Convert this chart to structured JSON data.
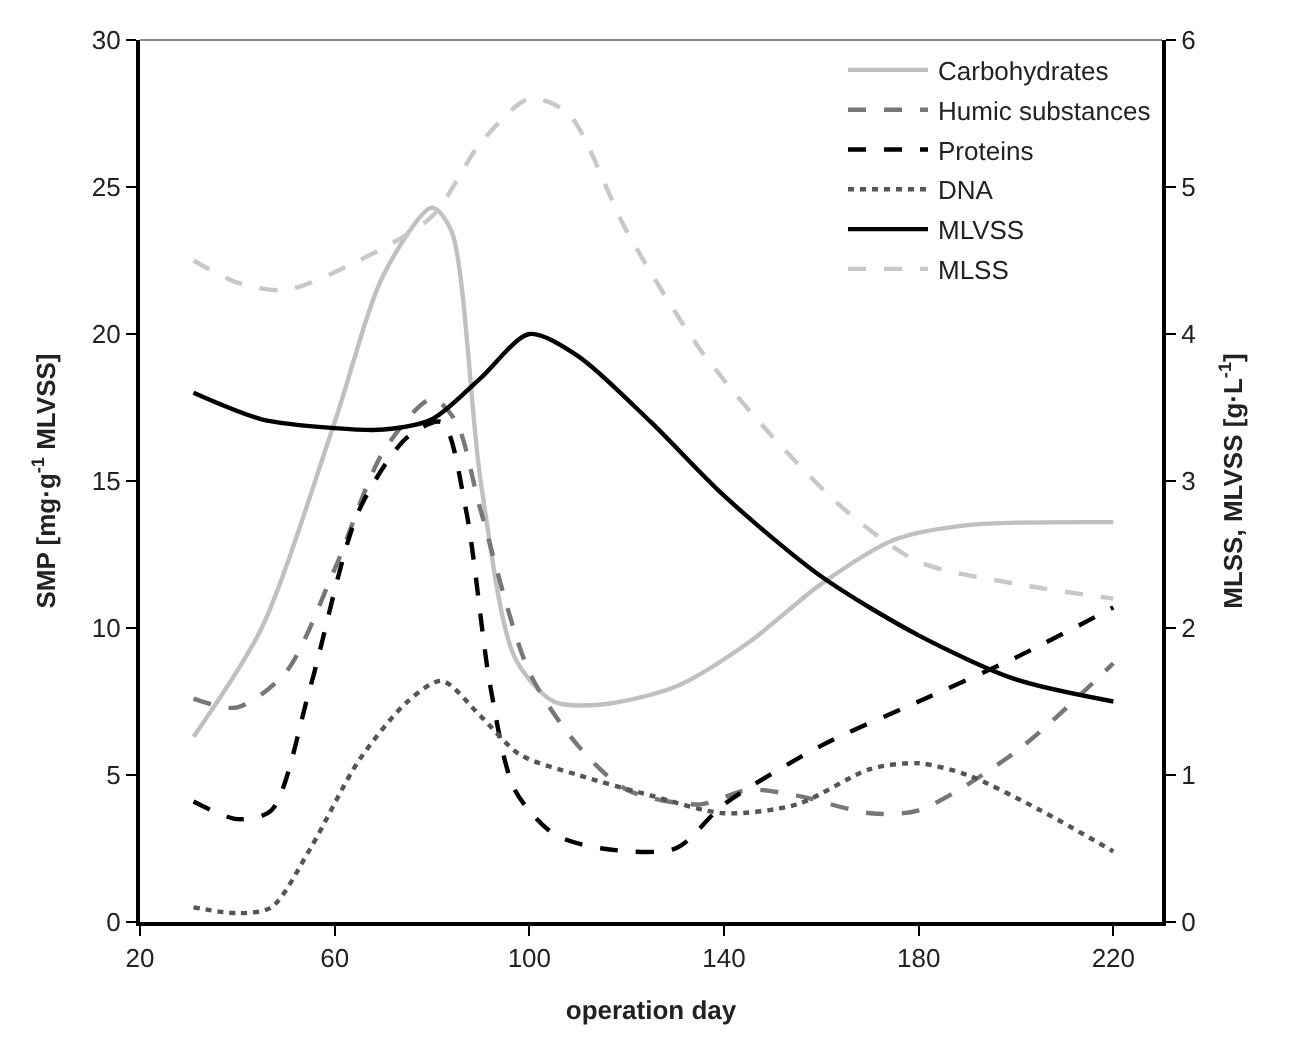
{
  "chart_data": {
    "type": "line",
    "xlabel": "operation day",
    "ylabel": "SMP [mg·g$^{-1}$ MLVSS]",
    "y2label": "MLSS, MLVSS [g·L$^{-1}$]",
    "xlim": [
      20,
      230
    ],
    "xticks": [
      20,
      60,
      100,
      140,
      180,
      220
    ],
    "ylim": [
      0,
      30
    ],
    "yticks": [
      0,
      5,
      10,
      15,
      20,
      25,
      30
    ],
    "y2lim": [
      0,
      6
    ],
    "y2ticks": [
      0,
      1,
      2,
      3,
      4,
      5,
      6
    ],
    "legend": "top right",
    "marker": "none",
    "series": [
      {
        "name": "Carbohydrates",
        "color": "#c0c0c0",
        "line_style": "solid",
        "x": [
          31,
          45,
          60,
          70,
          80,
          84,
          90,
          97,
          105,
          115,
          130,
          145,
          160,
          175,
          190,
          220
        ],
        "values": [
          6.3,
          10,
          17,
          22,
          24.3,
          23.5,
          15,
          9,
          7.5,
          7.4,
          8,
          9.5,
          11.5,
          13,
          13.5,
          13.6
        ]
      },
      {
        "name": "Humic substances",
        "color": "#777777",
        "line_style": "dashed",
        "x": [
          31,
          40,
          50,
          60,
          70,
          80,
          85,
          90,
          100,
          110,
          120,
          135,
          145,
          155,
          170,
          180,
          200,
          220
        ],
        "values": [
          7.6,
          7.3,
          8.5,
          12,
          16,
          17.8,
          17,
          14,
          8.5,
          6,
          4.5,
          4,
          4.5,
          4.3,
          3.7,
          3.8,
          5.8,
          8.8
        ]
      },
      {
        "name": "Proteins",
        "color": "#000000",
        "line_style": "dashed",
        "x": [
          31,
          40,
          47,
          55,
          65,
          75,
          82,
          87,
          92,
          97,
          105,
          115,
          130,
          140,
          160,
          180,
          200,
          220
        ],
        "values": [
          4.1,
          3.5,
          3.8,
          8,
          14,
          16.5,
          17,
          14,
          8,
          4.5,
          3,
          2.5,
          2.5,
          4,
          6,
          7.5,
          9,
          10.7
        ]
      },
      {
        "name": "DNA",
        "color": "#555555",
        "line_style": "dotted",
        "x": [
          31,
          40,
          47,
          55,
          65,
          75,
          82,
          90,
          98,
          110,
          125,
          140,
          155,
          170,
          180,
          190,
          205,
          220
        ],
        "values": [
          0.5,
          0.3,
          0.5,
          2.5,
          5.5,
          7.5,
          8.2,
          7,
          5.7,
          5,
          4.3,
          3.7,
          4,
          5.2,
          5.4,
          5,
          3.8,
          2.4
        ]
      },
      {
        "name": "MLVSS",
        "color": "#000000",
        "line_style": "solid",
        "axis": "y2",
        "x": [
          31,
          45,
          60,
          70,
          80,
          90,
          100,
          110,
          125,
          140,
          160,
          180,
          200,
          220
        ],
        "values": [
          3.6,
          3.42,
          3.36,
          3.35,
          3.42,
          3.7,
          4.0,
          3.85,
          3.4,
          2.9,
          2.35,
          1.95,
          1.65,
          1.5
        ]
      },
      {
        "name": "MLSS",
        "color": "#c8c8c8",
        "line_style": "dashed",
        "axis": "y2",
        "x": [
          31,
          40,
          50,
          65,
          80,
          90,
          100,
          108,
          120,
          135,
          150,
          165,
          180,
          200,
          220
        ],
        "values": [
          4.5,
          4.35,
          4.3,
          4.5,
          4.8,
          5.3,
          5.6,
          5.5,
          4.7,
          3.9,
          3.3,
          2.8,
          2.45,
          2.3,
          2.2
        ]
      }
    ]
  }
}
